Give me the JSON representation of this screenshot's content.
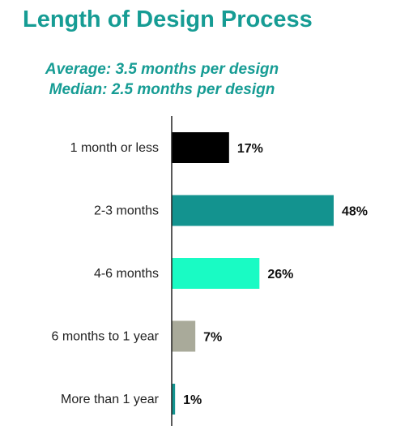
{
  "title": "Length of Design Process",
  "subtitle_lines": [
    "Average: 3.5 months per design",
    "Median: 2.5 months per design"
  ],
  "chart_data": {
    "type": "bar",
    "orientation": "horizontal",
    "title": "Length of Design Process",
    "categories": [
      "1 month or less",
      "2-3 months",
      "4-6 months",
      "6 months to 1 year",
      "More than 1 year"
    ],
    "values": [
      17,
      48,
      26,
      7,
      1
    ],
    "value_labels": [
      "17%",
      "48%",
      "26%",
      "7%",
      "1%"
    ],
    "colors": [
      "#000000",
      "#13938f",
      "#19fbc4",
      "#a9aa9a",
      "#13938f"
    ],
    "xlim": [
      0,
      48
    ],
    "grid": false,
    "legend": "none"
  }
}
